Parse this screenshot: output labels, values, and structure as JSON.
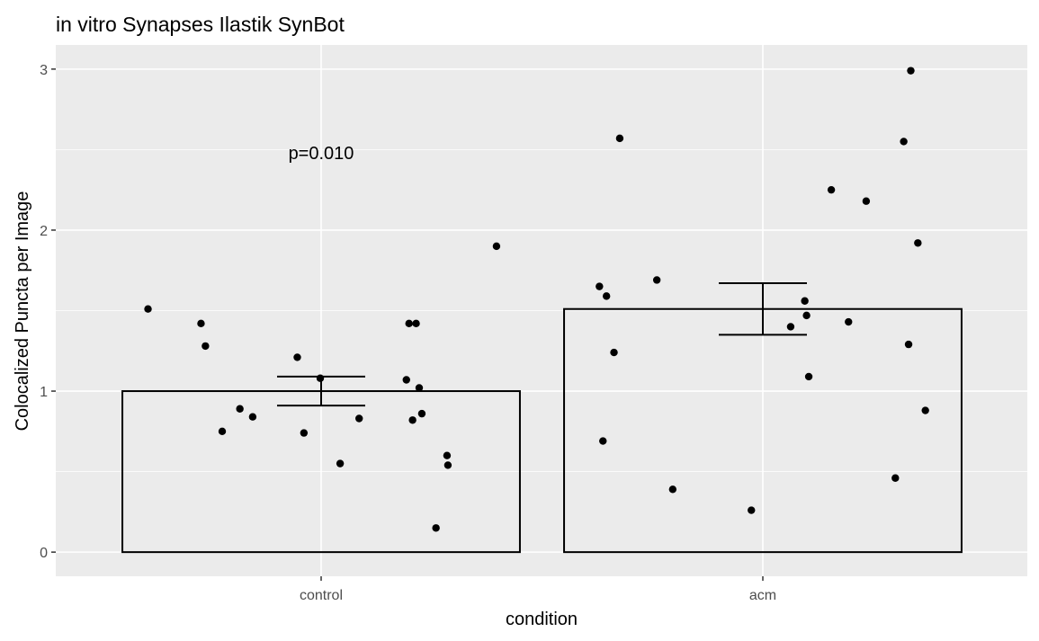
{
  "chart_data": {
    "type": "bar",
    "title": "in vitro Synapses Ilastik SynBot",
    "xlabel": "condition",
    "ylabel": "Colocalized Puncta per Image",
    "categories": [
      "control",
      "acm"
    ],
    "values": [
      1.0,
      1.51
    ],
    "error_bars": [
      {
        "category": "control",
        "lower": 0.91,
        "upper": 1.09
      },
      {
        "category": "acm",
        "lower": 1.35,
        "upper": 1.67
      }
    ],
    "ylim": [
      -0.15,
      3.15
    ],
    "yticks": [
      0,
      1,
      2,
      3
    ],
    "grid": true,
    "annotation": {
      "text": "p=0.010",
      "category": "control",
      "y": 2.48
    },
    "points": [
      {
        "category": "control",
        "offset": -0.392,
        "y": 1.51
      },
      {
        "category": "control",
        "offset": -0.272,
        "y": 1.42
      },
      {
        "category": "control",
        "offset": -0.262,
        "y": 1.28
      },
      {
        "category": "control",
        "offset": -0.224,
        "y": 0.75
      },
      {
        "category": "control",
        "offset": -0.184,
        "y": 0.89
      },
      {
        "category": "control",
        "offset": -0.155,
        "y": 0.84
      },
      {
        "category": "control",
        "offset": -0.054,
        "y": 1.21
      },
      {
        "category": "control",
        "offset": -0.039,
        "y": 0.74
      },
      {
        "category": "control",
        "offset": -0.002,
        "y": 1.08
      },
      {
        "category": "control",
        "offset": 0.043,
        "y": 0.55
      },
      {
        "category": "control",
        "offset": 0.086,
        "y": 0.83
      },
      {
        "category": "control",
        "offset": 0.193,
        "y": 1.07
      },
      {
        "category": "control",
        "offset": 0.199,
        "y": 1.42
      },
      {
        "category": "control",
        "offset": 0.207,
        "y": 0.82
      },
      {
        "category": "control",
        "offset": 0.215,
        "y": 1.42
      },
      {
        "category": "control",
        "offset": 0.222,
        "y": 1.02
      },
      {
        "category": "control",
        "offset": 0.228,
        "y": 0.86
      },
      {
        "category": "control",
        "offset": 0.26,
        "y": 0.15
      },
      {
        "category": "control",
        "offset": 0.285,
        "y": 0.6
      },
      {
        "category": "control",
        "offset": 0.287,
        "y": 0.54
      },
      {
        "category": "control",
        "offset": 0.397,
        "y": 1.9
      },
      {
        "category": "acm",
        "offset": -0.37,
        "y": 1.65
      },
      {
        "category": "acm",
        "offset": -0.362,
        "y": 0.69
      },
      {
        "category": "acm",
        "offset": -0.354,
        "y": 1.59
      },
      {
        "category": "acm",
        "offset": -0.337,
        "y": 1.24
      },
      {
        "category": "acm",
        "offset": -0.324,
        "y": 2.57
      },
      {
        "category": "acm",
        "offset": -0.24,
        "y": 1.69
      },
      {
        "category": "acm",
        "offset": -0.204,
        "y": 0.39
      },
      {
        "category": "acm",
        "offset": -0.026,
        "y": 0.26
      },
      {
        "category": "acm",
        "offset": 0.063,
        "y": 1.4
      },
      {
        "category": "acm",
        "offset": 0.095,
        "y": 1.56
      },
      {
        "category": "acm",
        "offset": 0.099,
        "y": 1.47
      },
      {
        "category": "acm",
        "offset": 0.104,
        "y": 1.09
      },
      {
        "category": "acm",
        "offset": 0.155,
        "y": 2.25
      },
      {
        "category": "acm",
        "offset": 0.194,
        "y": 1.43
      },
      {
        "category": "acm",
        "offset": 0.234,
        "y": 2.18
      },
      {
        "category": "acm",
        "offset": 0.3,
        "y": 0.46
      },
      {
        "category": "acm",
        "offset": 0.319,
        "y": 2.55
      },
      {
        "category": "acm",
        "offset": 0.33,
        "y": 1.29
      },
      {
        "category": "acm",
        "offset": 0.335,
        "y": 2.99
      },
      {
        "category": "acm",
        "offset": 0.351,
        "y": 1.92
      },
      {
        "category": "acm",
        "offset": 0.368,
        "y": 0.88
      }
    ]
  }
}
